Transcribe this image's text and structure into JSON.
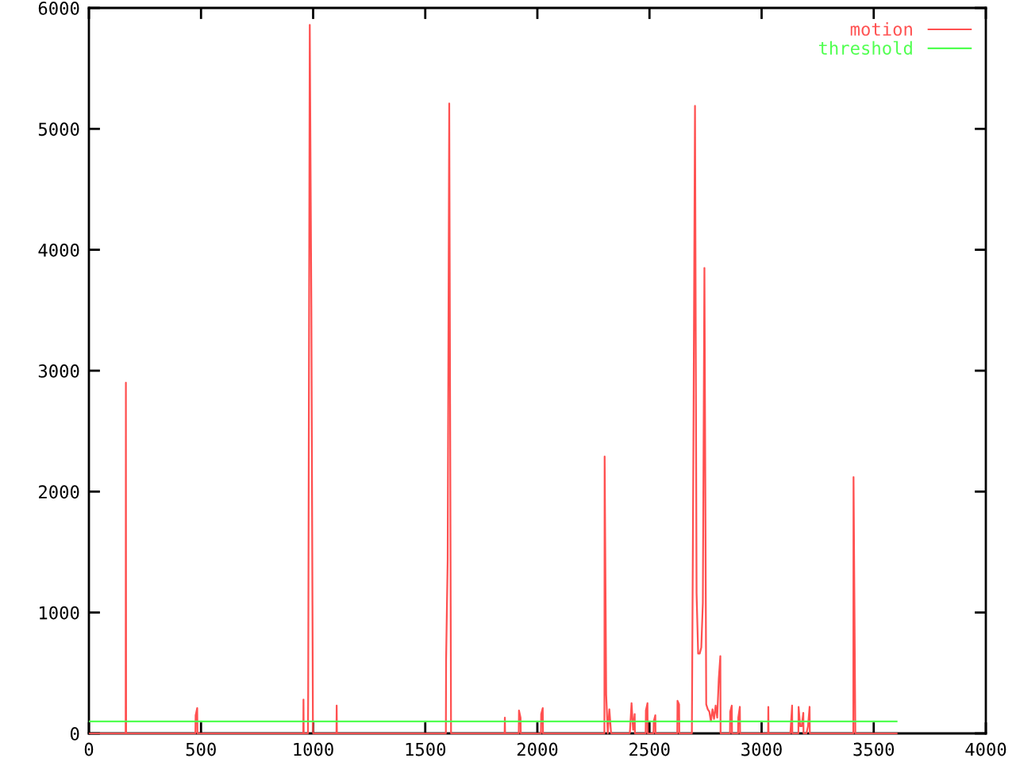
{
  "chart_data": {
    "type": "line",
    "xlim": [
      0,
      4000
    ],
    "xticks": [
      0,
      500,
      1000,
      1500,
      2000,
      2500,
      3000,
      3500,
      4000
    ],
    "ylim": [
      0,
      6000
    ],
    "yticks": [
      0,
      1000,
      2000,
      3000,
      4000,
      5000,
      6000
    ],
    "grid": false,
    "legend": "top right",
    "series": [
      {
        "name": "motion",
        "color": "#ff5050",
        "x": [
          0,
          164,
          165,
          166,
          475,
          476,
          483,
          484,
          956,
          957,
          958,
          977,
          978,
          985,
          992,
          999,
          1000,
          1104,
          1105,
          1106,
          1592,
          1593,
          1600,
          1607,
          1614,
          1615,
          1854,
          1855,
          1856,
          1917,
          1918,
          1925,
          1926,
          2016,
          2017,
          2024,
          2025,
          2299,
          2300,
          2307,
          2314,
          2321,
          2328,
          2329,
          2412,
          2413,
          2420,
          2427,
          2434,
          2435,
          2483,
          2484,
          2491,
          2492,
          2518,
          2519,
          2526,
          2527,
          2624,
          2625,
          2632,
          2633,
          2689,
          2696,
          2703,
          2710,
          2717,
          2724,
          2731,
          2738,
          2745,
          2753,
          2760,
          2767,
          2774,
          2781,
          2788,
          2795,
          2802,
          2809,
          2816,
          2817,
          2859,
          2860,
          2867,
          2868,
          2895,
          2896,
          2903,
          2904,
          3029,
          3030,
          3031,
          3128,
          3129,
          3136,
          3137,
          3164,
          3165,
          3172,
          3179,
          3186,
          3187,
          3200,
          3207,
          3214,
          3215,
          3409,
          3410,
          3417,
          3418,
          3606
        ],
        "values": [
          0,
          0,
          2900,
          0,
          0,
          150,
          210,
          0,
          0,
          280,
          0,
          0,
          360,
          5860,
          3540,
          90,
          0,
          0,
          230,
          0,
          0,
          610,
          1440,
          5210,
          670,
          0,
          0,
          130,
          0,
          0,
          190,
          130,
          0,
          0,
          160,
          210,
          0,
          0,
          2290,
          320,
          0,
          200,
          20,
          0,
          0,
          20,
          250,
          30,
          160,
          0,
          0,
          190,
          250,
          0,
          0,
          100,
          150,
          0,
          0,
          270,
          240,
          0,
          0,
          2420,
          5190,
          1160,
          660,
          660,
          710,
          1080,
          3850,
          240,
          200,
          180,
          100,
          200,
          120,
          230,
          130,
          450,
          640,
          0,
          0,
          180,
          230,
          0,
          0,
          130,
          220,
          0,
          0,
          220,
          0,
          0,
          20,
          230,
          0,
          0,
          220,
          60,
          60,
          170,
          0,
          0,
          60,
          220,
          0,
          0,
          2120,
          270,
          0,
          0
        ]
      },
      {
        "name": "threshold",
        "color": "#50ff50",
        "x": [
          0,
          3606
        ],
        "values": [
          100,
          100
        ]
      }
    ]
  }
}
